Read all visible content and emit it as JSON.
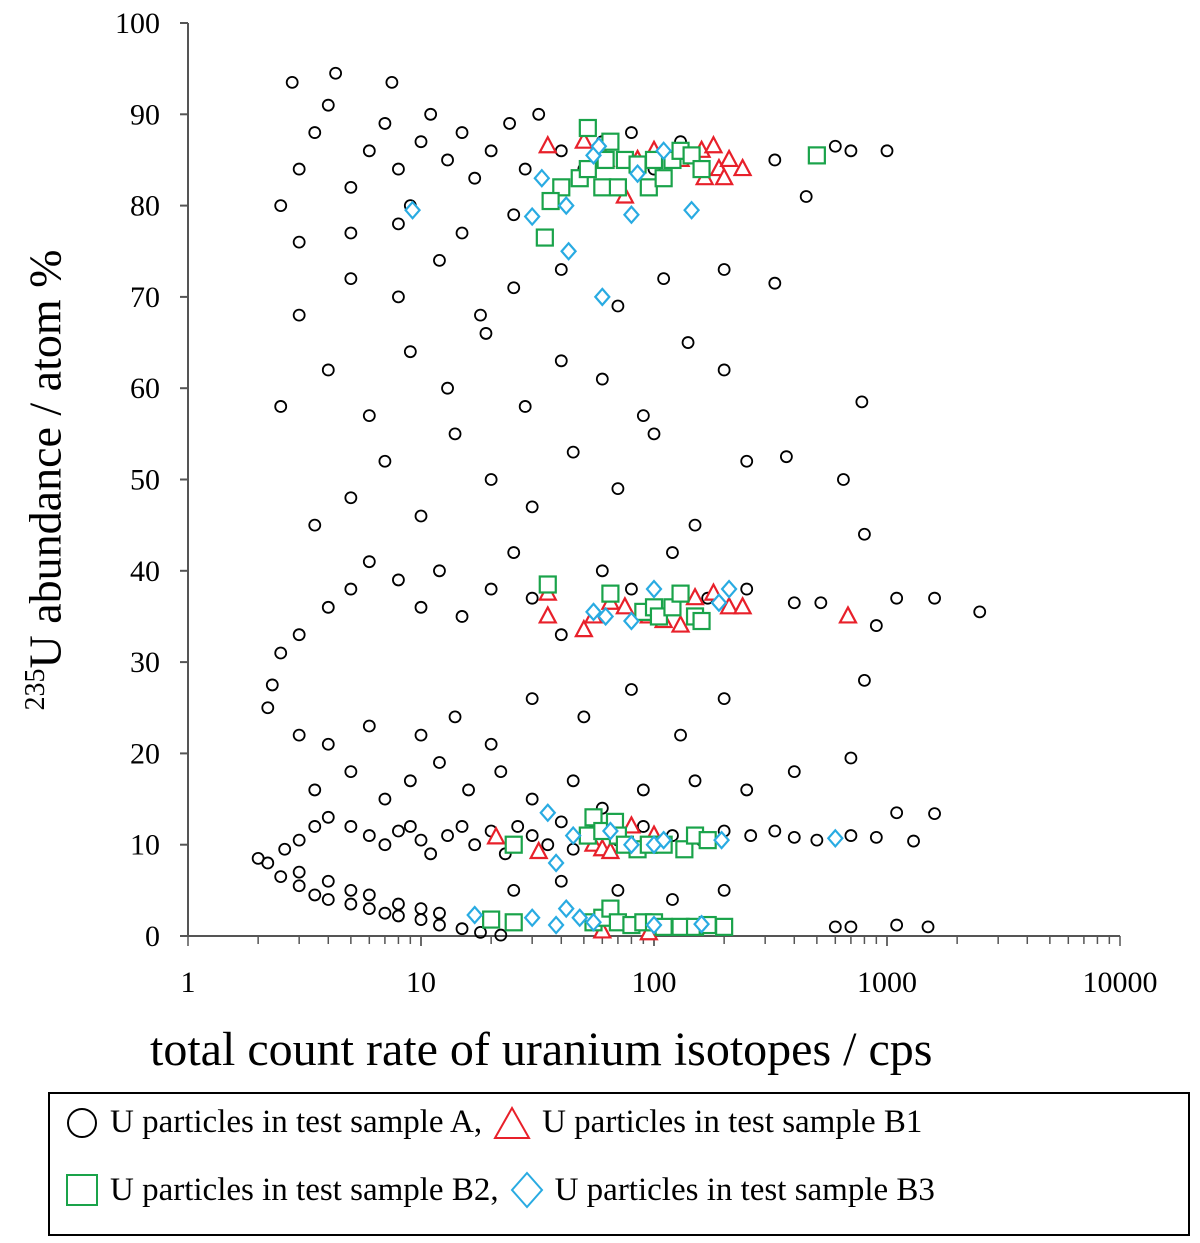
{
  "chart_data": {
    "type": "scatter",
    "xlabel": "total count rate of uranium isotopes / cps",
    "ylabel_sup": "235",
    "ylabel": "U abundance / atom %",
    "xscale": "log",
    "xlim": [
      1,
      10000
    ],
    "ylim": [
      0,
      100
    ],
    "xticks": [
      "1",
      "10",
      "100",
      "1000",
      "10000"
    ],
    "yticks": [
      "0",
      "10",
      "20",
      "30",
      "40",
      "50",
      "60",
      "70",
      "80",
      "90",
      "100"
    ],
    "grid": false,
    "legend_position": "bottom",
    "series": [
      {
        "name": "U particles in test sample A,",
        "marker": "circle",
        "color": "#000000",
        "points": [
          [
            2,
            8.5
          ],
          [
            2.2,
            8
          ],
          [
            2.5,
            6.5
          ],
          [
            3,
            5.5
          ],
          [
            3.5,
            4.5
          ],
          [
            4,
            4
          ],
          [
            5,
            3.5
          ],
          [
            6,
            3
          ],
          [
            7,
            2.5
          ],
          [
            8,
            2.2
          ],
          [
            10,
            1.8
          ],
          [
            12,
            1.2
          ],
          [
            15,
            0.8
          ],
          [
            18,
            0.4
          ],
          [
            22,
            0.1
          ],
          [
            3,
            7
          ],
          [
            4,
            6
          ],
          [
            5,
            5
          ],
          [
            6,
            4.5
          ],
          [
            8,
            3.5
          ],
          [
            10,
            3
          ],
          [
            12,
            2.5
          ],
          [
            2.6,
            9.5
          ],
          [
            3,
            10.5
          ],
          [
            3.5,
            12
          ],
          [
            4,
            13
          ],
          [
            5,
            12
          ],
          [
            6,
            11
          ],
          [
            7,
            10
          ],
          [
            8,
            11.5
          ],
          [
            9,
            12
          ],
          [
            10,
            10.5
          ],
          [
            11,
            9
          ],
          [
            13,
            11
          ],
          [
            15,
            12
          ],
          [
            17,
            10
          ],
          [
            20,
            11.5
          ],
          [
            23,
            9
          ],
          [
            26,
            12
          ],
          [
            30,
            11
          ],
          [
            35,
            10
          ],
          [
            40,
            12.5
          ],
          [
            45,
            9.5
          ],
          [
            55,
            11.5
          ],
          [
            70,
            10.5
          ],
          [
            90,
            12
          ],
          [
            120,
            11
          ],
          [
            160,
            10.5
          ],
          [
            200,
            11.5
          ],
          [
            260,
            11
          ],
          [
            330,
            11.5
          ],
          [
            400,
            10.8
          ],
          [
            500,
            10.5
          ],
          [
            700,
            11
          ],
          [
            900,
            10.8
          ],
          [
            1300,
            10.4
          ],
          [
            1100,
            13.5
          ],
          [
            1600,
            13.4
          ],
          [
            700,
            19.5
          ],
          [
            3.5,
            16
          ],
          [
            5,
            18
          ],
          [
            7,
            15
          ],
          [
            9,
            17
          ],
          [
            12,
            19
          ],
          [
            16,
            16
          ],
          [
            22,
            18
          ],
          [
            30,
            15
          ],
          [
            45,
            17
          ],
          [
            60,
            14
          ],
          [
            90,
            16
          ],
          [
            150,
            17
          ],
          [
            250,
            16
          ],
          [
            400,
            18
          ],
          [
            3,
            22
          ],
          [
            4,
            21
          ],
          [
            6,
            23
          ],
          [
            10,
            22
          ],
          [
            14,
            24
          ],
          [
            20,
            21
          ],
          [
            30,
            26
          ],
          [
            50,
            24
          ],
          [
            80,
            27
          ],
          [
            130,
            22
          ],
          [
            200,
            26
          ],
          [
            2.2,
            25
          ],
          [
            2.3,
            27.5
          ],
          [
            2.5,
            31
          ],
          [
            3,
            33
          ],
          [
            4,
            36
          ],
          [
            5,
            38
          ],
          [
            6,
            41
          ],
          [
            8,
            39
          ],
          [
            10,
            36
          ],
          [
            12,
            40
          ],
          [
            15,
            35
          ],
          [
            20,
            38
          ],
          [
            25,
            42
          ],
          [
            30,
            37
          ],
          [
            40,
            33
          ],
          [
            60,
            40
          ],
          [
            80,
            38
          ],
          [
            120,
            42
          ],
          [
            170,
            37
          ],
          [
            250,
            38
          ],
          [
            400,
            36.5
          ],
          [
            520,
            36.5
          ],
          [
            900,
            34
          ],
          [
            1100,
            37
          ],
          [
            1600,
            37
          ],
          [
            2500,
            35.5
          ],
          [
            800,
            28
          ],
          [
            3.5,
            45
          ],
          [
            5,
            48
          ],
          [
            7,
            52
          ],
          [
            10,
            46
          ],
          [
            14,
            55
          ],
          [
            20,
            50
          ],
          [
            30,
            47
          ],
          [
            45,
            53
          ],
          [
            70,
            49
          ],
          [
            100,
            55
          ],
          [
            150,
            45
          ],
          [
            250,
            52
          ],
          [
            370,
            52.5
          ],
          [
            650,
            50
          ],
          [
            800,
            44
          ],
          [
            2.5,
            58
          ],
          [
            4,
            62
          ],
          [
            6,
            57
          ],
          [
            9,
            64
          ],
          [
            13,
            60
          ],
          [
            19,
            66
          ],
          [
            28,
            58
          ],
          [
            40,
            63
          ],
          [
            60,
            61
          ],
          [
            90,
            57
          ],
          [
            140,
            65
          ],
          [
            200,
            62
          ],
          [
            780,
            58.5
          ],
          [
            3,
            68
          ],
          [
            5,
            72
          ],
          [
            8,
            70
          ],
          [
            12,
            74
          ],
          [
            18,
            68
          ],
          [
            25,
            71
          ],
          [
            40,
            73
          ],
          [
            70,
            69
          ],
          [
            110,
            72
          ],
          [
            200,
            73
          ],
          [
            330,
            71.5
          ],
          [
            2.5,
            80
          ],
          [
            3,
            84
          ],
          [
            3.5,
            88
          ],
          [
            4,
            91
          ],
          [
            4.3,
            94.5
          ],
          [
            5,
            82
          ],
          [
            6,
            86
          ],
          [
            7,
            89
          ],
          [
            8,
            84
          ],
          [
            9,
            80
          ],
          [
            10,
            87
          ],
          [
            11,
            90
          ],
          [
            13,
            85
          ],
          [
            15,
            88
          ],
          [
            17,
            83
          ],
          [
            20,
            86
          ],
          [
            24,
            89
          ],
          [
            28,
            84
          ],
          [
            32,
            90
          ],
          [
            40,
            86
          ],
          [
            50,
            84
          ],
          [
            60,
            87
          ],
          [
            80,
            88
          ],
          [
            100,
            84
          ],
          [
            130,
            87
          ],
          [
            2.8,
            93.5
          ],
          [
            7.5,
            93.5
          ],
          [
            3,
            76
          ],
          [
            5,
            77
          ],
          [
            8,
            78
          ],
          [
            15,
            77
          ],
          [
            25,
            79
          ],
          [
            330,
            85
          ],
          [
            450,
            81
          ],
          [
            600,
            86.5
          ],
          [
            700,
            86
          ],
          [
            1000,
            86
          ],
          [
            600,
            1
          ],
          [
            700,
            1
          ],
          [
            1100,
            1.2
          ],
          [
            1500,
            1
          ],
          [
            25,
            5
          ],
          [
            40,
            6
          ],
          [
            70,
            5
          ],
          [
            120,
            4
          ],
          [
            200,
            5
          ]
        ]
      },
      {
        "name": "U particles in test sample B1",
        "marker": "triangle",
        "color": "#e8202a",
        "points": [
          [
            35,
            86.5
          ],
          [
            50,
            87
          ],
          [
            62,
            85
          ],
          [
            75,
            81
          ],
          [
            85,
            85
          ],
          [
            100,
            86
          ],
          [
            130,
            85
          ],
          [
            160,
            86
          ],
          [
            180,
            86.5
          ],
          [
            190,
            84
          ],
          [
            210,
            85
          ],
          [
            240,
            84
          ],
          [
            200,
            83
          ],
          [
            165,
            83
          ],
          [
            35,
            37.5
          ],
          [
            35,
            35
          ],
          [
            50,
            33.5
          ],
          [
            55,
            35
          ],
          [
            65,
            36.5
          ],
          [
            75,
            36
          ],
          [
            95,
            35
          ],
          [
            110,
            34.5
          ],
          [
            130,
            34
          ],
          [
            150,
            37
          ],
          [
            180,
            37.5
          ],
          [
            210,
            36
          ],
          [
            240,
            36
          ],
          [
            680,
            35
          ],
          [
            21,
            10.8
          ],
          [
            32,
            9.2
          ],
          [
            55,
            10
          ],
          [
            60,
            9.5
          ],
          [
            65,
            9.2
          ],
          [
            80,
            12
          ],
          [
            100,
            11
          ],
          [
            60,
            0.5
          ],
          [
            95,
            0.3
          ]
        ]
      },
      {
        "name": "U particles in test sample B2,",
        "marker": "square",
        "color": "#1aa34a",
        "points": [
          [
            52,
            88.5
          ],
          [
            40,
            82
          ],
          [
            36,
            80.5
          ],
          [
            34,
            76.5
          ],
          [
            48,
            83
          ],
          [
            52,
            84
          ],
          [
            60,
            82
          ],
          [
            62,
            85
          ],
          [
            65,
            87
          ],
          [
            70,
            82
          ],
          [
            75,
            85
          ],
          [
            85,
            84.5
          ],
          [
            95,
            82
          ],
          [
            110,
            83
          ],
          [
            120,
            85
          ],
          [
            130,
            86
          ],
          [
            145,
            85.5
          ],
          [
            160,
            84
          ],
          [
            100,
            85
          ],
          [
            500,
            85.5
          ],
          [
            35,
            38.5
          ],
          [
            65,
            37.5
          ],
          [
            90,
            35.5
          ],
          [
            100,
            36
          ],
          [
            105,
            35
          ],
          [
            120,
            36
          ],
          [
            130,
            37.5
          ],
          [
            150,
            35
          ],
          [
            160,
            34.5
          ],
          [
            25,
            10
          ],
          [
            55,
            13
          ],
          [
            52,
            11
          ],
          [
            60,
            11.5
          ],
          [
            68,
            12.5
          ],
          [
            70,
            11
          ],
          [
            75,
            10
          ],
          [
            85,
            9.5
          ],
          [
            95,
            10
          ],
          [
            110,
            10
          ],
          [
            135,
            9.5
          ],
          [
            150,
            11
          ],
          [
            170,
            10.5
          ],
          [
            20,
            1.8
          ],
          [
            25,
            1.5
          ],
          [
            55,
            1.5
          ],
          [
            60,
            2
          ],
          [
            65,
            3
          ],
          [
            70,
            1.5
          ],
          [
            80,
            1.2
          ],
          [
            90,
            1.5
          ],
          [
            100,
            1.5
          ],
          [
            110,
            1
          ],
          [
            130,
            1
          ],
          [
            150,
            1
          ],
          [
            170,
            1.2
          ],
          [
            200,
            1
          ]
        ]
      },
      {
        "name": "U particles in test sample B3",
        "marker": "diamond",
        "color": "#29abe2",
        "points": [
          [
            9.2,
            79.5
          ],
          [
            33,
            83
          ],
          [
            30,
            78.8
          ],
          [
            42,
            80
          ],
          [
            43,
            75
          ],
          [
            55,
            85.5
          ],
          [
            58,
            86.5
          ],
          [
            60,
            70
          ],
          [
            80,
            79
          ],
          [
            85,
            83.5
          ],
          [
            110,
            86
          ],
          [
            145,
            79.5
          ],
          [
            55,
            35.5
          ],
          [
            62,
            35
          ],
          [
            80,
            34.5
          ],
          [
            100,
            38
          ],
          [
            190,
            36.5
          ],
          [
            210,
            38
          ],
          [
            35,
            13.5
          ],
          [
            38,
            8
          ],
          [
            45,
            11
          ],
          [
            65,
            11.5
          ],
          [
            80,
            10
          ],
          [
            100,
            10
          ],
          [
            110,
            10.5
          ],
          [
            195,
            10.5
          ],
          [
            600,
            10.7
          ],
          [
            17,
            2.3
          ],
          [
            30,
            2
          ],
          [
            38,
            1.2
          ],
          [
            42,
            3
          ],
          [
            48,
            2
          ],
          [
            55,
            1.5
          ],
          [
            100,
            1.2
          ],
          [
            160,
            1.3
          ]
        ]
      }
    ]
  }
}
